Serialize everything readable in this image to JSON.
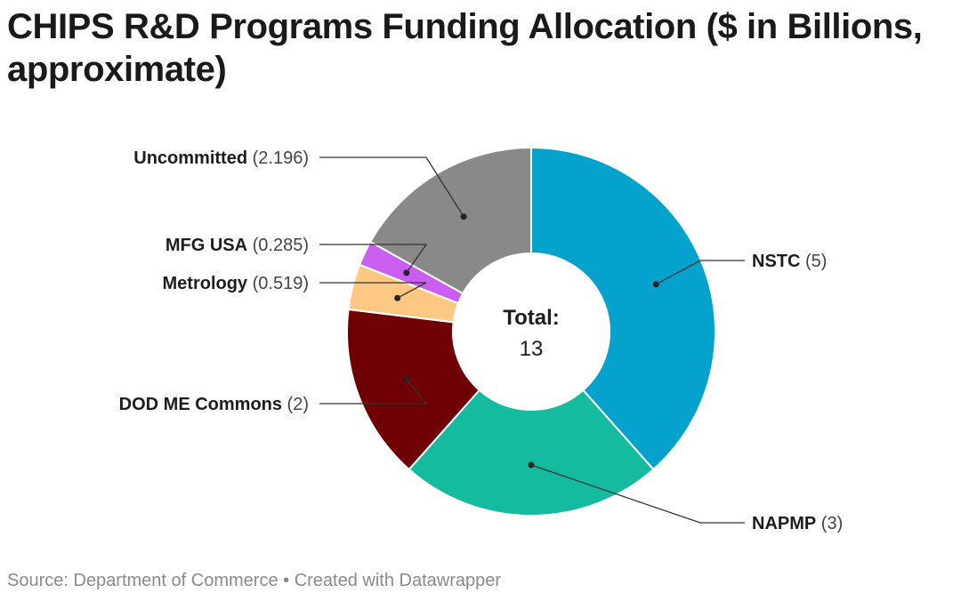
{
  "title": "CHIPS R&D Programs Funding Allocation ($ in Billions, approximate)",
  "center_label": {
    "heading": "Total:",
    "value": "13"
  },
  "footer": {
    "source_prefix": "Source: ",
    "source_name": "Department of Commerce",
    "separator": " • ",
    "credit": "Created with Datawrapper"
  },
  "chart_data": {
    "type": "pie",
    "variant": "donut",
    "title": "CHIPS R&D Programs Funding Allocation ($ in Billions, approximate)",
    "total": 13,
    "slices": [
      {
        "label": "NSTC",
        "value": 5,
        "value_text": "5",
        "color": "#05a2cd",
        "label_side": "right"
      },
      {
        "label": "NAPMP",
        "value": 3,
        "value_text": "3",
        "color": "#14bb9e",
        "label_side": "right"
      },
      {
        "label": "DOD ME Commons",
        "value": 2,
        "value_text": "2",
        "color": "#6e0006",
        "label_side": "left"
      },
      {
        "label": "Metrology",
        "value": 0.519,
        "value_text": "0.519",
        "color": "#ffc882",
        "label_side": "left"
      },
      {
        "label": "MFG USA",
        "value": 0.285,
        "value_text": "0.285",
        "color": "#c95ef0",
        "label_side": "left"
      },
      {
        "label": "Uncommitted",
        "value": 2.196,
        "value_text": "2.196",
        "color": "#898989",
        "label_side": "left"
      }
    ]
  }
}
